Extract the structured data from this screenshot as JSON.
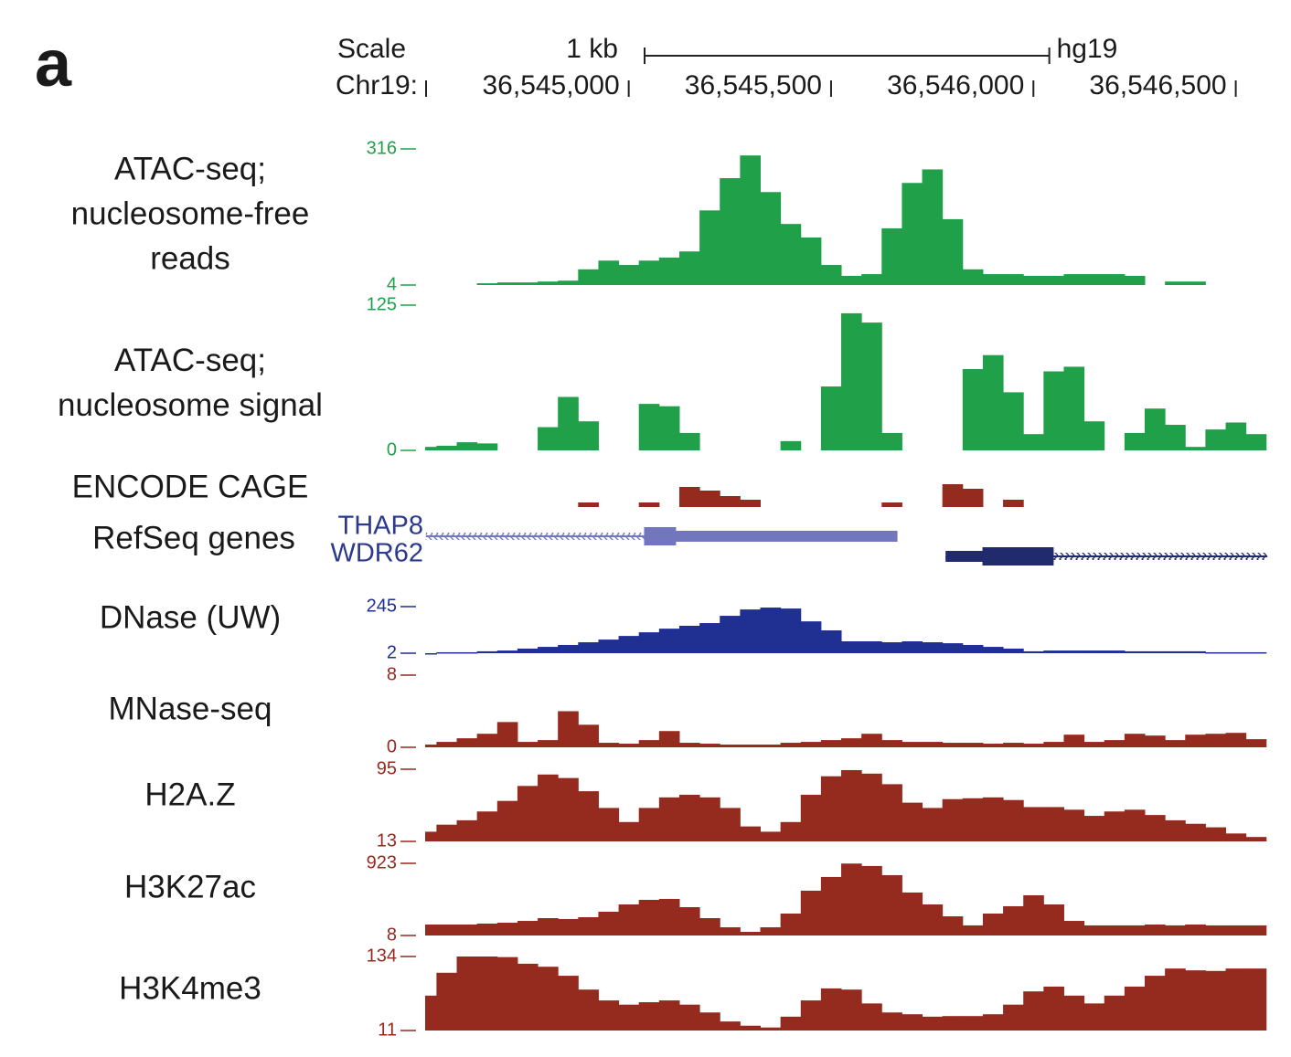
{
  "panel_label": "a",
  "chart_data": {
    "type": "bar",
    "scale": {
      "label": "Scale",
      "bar_label": "1 kb",
      "length": 1000,
      "assembly": "hg19"
    },
    "x_axis_label": "Chr19:",
    "xlim": [
      36544497,
      36546580
    ],
    "xticks": [
      {
        "value": 36545000,
        "label": "36,545,000"
      },
      {
        "value": 36545500,
        "label": "36,545,500"
      },
      {
        "value": 36546000,
        "label": "36,546,000"
      },
      {
        "value": 36546500,
        "label": "36,546,500"
      }
    ],
    "x": [
      36544500,
      36544550,
      36544600,
      36544650,
      36544700,
      36544750,
      36544800,
      36544850,
      36544900,
      36544950,
      36545000,
      36545050,
      36545100,
      36545150,
      36545200,
      36545250,
      36545300,
      36545350,
      36545400,
      36545450,
      36545500,
      36545550,
      36545600,
      36545650,
      36545700,
      36545750,
      36545800,
      36545850,
      36545900,
      36545950,
      36546000,
      36546050,
      36546100,
      36546150,
      36546200,
      36546250,
      36546300,
      36546350,
      36546400,
      36546450,
      36546500,
      36546550
    ],
    "series": [
      {
        "name": [
          "ATAC-seq;",
          "nucleosome-free",
          "reads"
        ],
        "color": "#21a04a",
        "ylim": [
          4,
          316
        ],
        "yticks": [
          4,
          316
        ],
        "values": [
          null,
          null,
          null,
          8,
          10,
          10,
          12,
          14,
          40,
          60,
          50,
          60,
          67,
          81,
          175,
          249,
          301,
          217,
          144,
          113,
          50,
          25,
          29,
          134,
          238,
          269,
          155,
          40,
          29,
          29,
          25,
          25,
          29,
          29,
          29,
          25,
          null,
          12,
          12,
          null,
          null,
          null
        ]
      },
      {
        "name": [
          "ATAC-seq;",
          "nucleosome signal"
        ],
        "color": "#21a04a",
        "ylim": [
          0,
          125
        ],
        "yticks": [
          0,
          125
        ],
        "values": [
          3,
          4,
          7,
          6,
          null,
          null,
          20,
          46,
          25,
          null,
          null,
          40,
          38,
          15,
          null,
          null,
          null,
          null,
          8,
          null,
          55,
          118,
          110,
          15,
          null,
          null,
          null,
          70,
          82,
          50,
          14,
          68,
          72,
          25,
          null,
          15,
          36,
          22,
          3,
          18,
          24,
          14
        ]
      },
      {
        "name": [
          "ENCODE CAGE"
        ],
        "color": "#952a1f",
        "ylim": [
          0,
          30
        ],
        "values": [
          null,
          null,
          null,
          null,
          null,
          null,
          null,
          null,
          5,
          null,
          null,
          5,
          null,
          22,
          18,
          12,
          8,
          null,
          null,
          null,
          null,
          null,
          null,
          5,
          null,
          null,
          25,
          20,
          null,
          8,
          null,
          null,
          null,
          null,
          null,
          null,
          null,
          null,
          null,
          null,
          null,
          null
        ]
      },
      {
        "name": [
          "DNase (UW)"
        ],
        "color": "#1f2f92",
        "ylim": [
          2,
          245
        ],
        "yticks": [
          2,
          245
        ],
        "values": [
          2,
          7,
          7,
          12,
          16,
          26,
          35,
          45,
          59,
          73,
          92,
          111,
          130,
          145,
          159,
          197,
          230,
          240,
          235,
          168,
          121,
          64,
          64,
          59,
          64,
          59,
          54,
          45,
          35,
          26,
          12,
          16,
          16,
          16,
          16,
          12,
          12,
          12,
          12,
          7,
          7,
          7
        ]
      },
      {
        "name": [
          "MNase-seq"
        ],
        "color": "#952a1f",
        "ylim": [
          0,
          8
        ],
        "yticks": [
          0,
          8
        ],
        "values": [
          0.3,
          0.6,
          1.0,
          1.5,
          2.8,
          0.6,
          0.8,
          4.0,
          2.5,
          0.5,
          0.4,
          0.8,
          1.8,
          0.5,
          0.4,
          0.3,
          0.3,
          0.3,
          0.5,
          0.6,
          0.8,
          1.0,
          1.5,
          0.8,
          0.6,
          0.6,
          0.5,
          0.5,
          0.4,
          0.5,
          0.4,
          0.6,
          1.4,
          0.6,
          0.8,
          1.5,
          1.3,
          0.8,
          1.4,
          1.5,
          1.6,
          0.9
        ]
      },
      {
        "name": [
          "H2A.Z"
        ],
        "color": "#952a1f",
        "ylim": [
          13,
          95
        ],
        "yticks": [
          13,
          95
        ],
        "values": [
          24,
          32,
          37,
          47,
          59,
          76,
          89,
          85,
          70,
          51,
          35,
          51,
          63,
          66,
          63,
          51,
          30,
          24,
          35,
          66,
          87,
          94,
          90,
          78,
          57,
          51,
          61,
          62,
          63,
          60,
          52,
          52,
          49,
          42,
          47,
          49,
          43,
          37,
          33,
          29,
          22,
          18
        ]
      },
      {
        "name": [
          "H3K27ac"
        ],
        "color": "#952a1f",
        "ylim": [
          8,
          923
        ],
        "yticks": [
          8,
          923
        ],
        "values": [
          147,
          147,
          147,
          159,
          170,
          193,
          228,
          217,
          240,
          309,
          402,
          460,
          472,
          367,
          228,
          112,
          54,
          112,
          286,
          576,
          750,
          920,
          889,
          773,
          553,
          402,
          251,
          136,
          286,
          379,
          518,
          402,
          193,
          136,
          136,
          136,
          147,
          136,
          147,
          136,
          136,
          136
        ]
      },
      {
        "name": [
          "H3K4me3"
        ],
        "color": "#952a1f",
        "ylim": [
          11,
          134
        ],
        "yticks": [
          11,
          134
        ],
        "values": [
          69,
          107,
          134,
          134,
          133,
          122,
          117,
          102,
          79,
          61,
          54,
          58,
          61,
          54,
          41,
          26,
          19,
          16,
          34,
          61,
          81,
          79,
          56,
          41,
          38,
          34,
          35,
          35,
          38,
          54,
          76,
          84,
          69,
          56,
          69,
          84,
          102,
          114,
          111,
          110,
          114,
          114
        ]
      }
    ],
    "genes_track": {
      "name": "RefSeq genes",
      "genes": [
        {
          "name": "THAP8",
          "color": "#7276bd",
          "span": [
            36544499,
            36545664
          ],
          "exons": [
            [
              36545038,
              36545664
            ]
          ],
          "thick": [
            36545038,
            36545117
          ]
        },
        {
          "name": "WDR62",
          "color": "#222a6e",
          "span": [
            36545783,
            36546578
          ],
          "exons": [
            [
              36545783,
              36546050
            ]
          ],
          "thick": [
            36545874,
            36546050
          ]
        }
      ]
    }
  }
}
